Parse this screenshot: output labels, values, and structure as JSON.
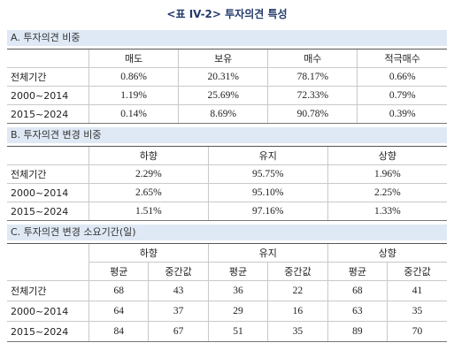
{
  "title": "<표 IV-2> 투자의견 특성",
  "sections": [
    {
      "heading": "A. 투자의견 비중",
      "columns": [
        "매도",
        "보유",
        "매수",
        "적극매수"
      ],
      "rows": [
        {
          "label": "전체기간",
          "cells": [
            "0.86%",
            "20.31%",
            "78.17%",
            "0.66%"
          ]
        },
        {
          "label": "2000~2014",
          "cells": [
            "1.19%",
            "25.69%",
            "72.33%",
            "0.79%"
          ]
        },
        {
          "label": "2015~2024",
          "cells": [
            "0.14%",
            "8.69%",
            "90.78%",
            "0.39%"
          ]
        }
      ]
    },
    {
      "heading": "B. 투자의견 변경 비중",
      "columns": [
        "하향",
        "유지",
        "상향"
      ],
      "rows": [
        {
          "label": "전체기간",
          "cells": [
            "2.29%",
            "95.75%",
            "1.96%"
          ]
        },
        {
          "label": "2000~2014",
          "cells": [
            "2.65%",
            "95.10%",
            "2.25%"
          ]
        },
        {
          "label": "2015~2024",
          "cells": [
            "1.51%",
            "97.16%",
            "1.33%"
          ]
        }
      ]
    },
    {
      "heading": "C. 투자의견 변경 소요기간(일)",
      "groups": [
        "하향",
        "유지",
        "상향"
      ],
      "columns": [
        "평균",
        "중간값",
        "평균",
        "중간값",
        "평균",
        "중간값"
      ],
      "rows": [
        {
          "label": "전체기간",
          "cells": [
            "68",
            "43",
            "36",
            "22",
            "68",
            "41"
          ]
        },
        {
          "label": "2000~2014",
          "cells": [
            "64",
            "37",
            "29",
            "16",
            "63",
            "35"
          ]
        },
        {
          "label": "2015~2024",
          "cells": [
            "84",
            "67",
            "51",
            "35",
            "89",
            "70"
          ]
        }
      ]
    }
  ]
}
